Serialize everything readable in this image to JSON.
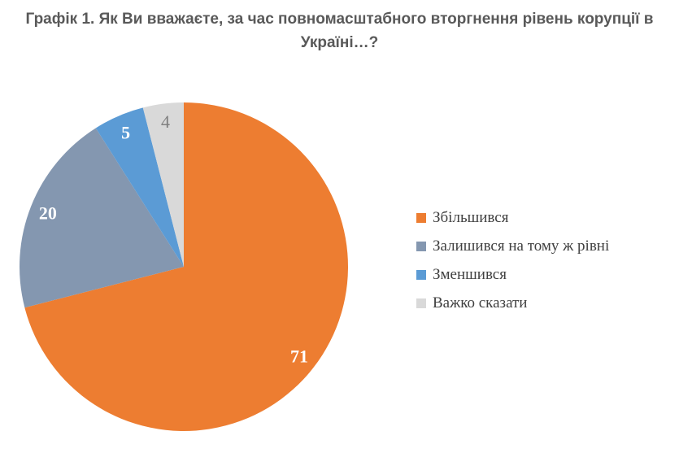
{
  "title": "Графік 1. Як Ви вважаєте, за час повномасштабного вторгнення рівень корупції в Україні…?",
  "chart_data": {
    "type": "pie",
    "title": "Графік 1. Як Ви вважаєте, за час повномасштабного вторгнення рівень корупції в Україні…?",
    "categories": [
      "Збільшився",
      "Залишився на тому ж рівні",
      "Зменшився",
      "Важко сказати"
    ],
    "values": [
      71,
      20,
      5,
      4
    ],
    "colors": [
      "#ED7D31",
      "#8497B0",
      "#5B9BD5",
      "#D9D9D9"
    ],
    "data_label_values": [
      "71",
      "20",
      "5",
      "4"
    ],
    "data_label_colors": [
      "#FFFFFF",
      "#FFFFFF",
      "#FFFFFF",
      "#808080"
    ],
    "data_label_weights": [
      "bold",
      "bold",
      "bold",
      "normal"
    ],
    "start_angle_deg": 0,
    "direction": "clockwise",
    "legend_position": "right",
    "title_color": "#595959",
    "legend_text_color": "#404040",
    "background_color": "#FFFFFF"
  }
}
